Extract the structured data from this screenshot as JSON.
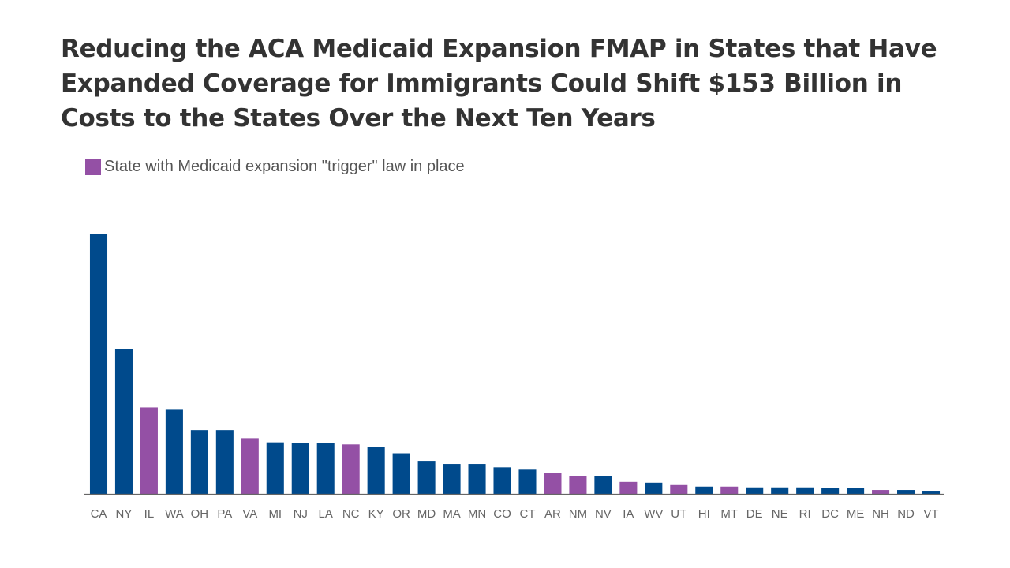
{
  "title": "Reducing the ACA Medicaid Expansion FMAP in States that Have Expanded Coverage for Immigrants Could Shift $153 Billion in Costs to the States Over the Next Ten Years",
  "legend": {
    "label": "State with Medicaid expansion \"trigger\" law in place"
  },
  "colors": {
    "default": "#004a8c",
    "trigger": "#9450a5",
    "axis": "#666666"
  },
  "chart_data": {
    "type": "bar",
    "title": "Reducing the ACA Medicaid Expansion FMAP in States that Have Expanded Coverage for Immigrants Could Shift $153 Billion in Costs to the States Over the Next Ten Years",
    "xlabel": "",
    "ylabel": "",
    "grid": false,
    "legend_position": "top-left",
    "categories": [
      "CA",
      "NY",
      "IL",
      "WA",
      "OH",
      "PA",
      "VA",
      "MI",
      "NJ",
      "LA",
      "NC",
      "KY",
      "OR",
      "MD",
      "MA",
      "MN",
      "CO",
      "CT",
      "AR",
      "NM",
      "NV",
      "IA",
      "WV",
      "UT",
      "HI",
      "MT",
      "DE",
      "NE",
      "RI",
      "DC",
      "ME",
      "NH",
      "ND",
      "VT"
    ],
    "values": [
      100,
      55.5,
      33.2,
      32.3,
      24.5,
      24.5,
      21.4,
      19.8,
      19.4,
      19.4,
      19.0,
      18.1,
      15.6,
      12.4,
      11.5,
      11.5,
      10.2,
      9.3,
      8.0,
      6.8,
      6.8,
      4.6,
      4.3,
      3.4,
      2.8,
      2.8,
      2.5,
      2.5,
      2.5,
      2.2,
      2.2,
      1.5,
      1.5,
      0.9
    ],
    "trigger_law": [
      false,
      false,
      true,
      false,
      false,
      false,
      true,
      false,
      false,
      false,
      true,
      false,
      false,
      false,
      false,
      false,
      false,
      false,
      true,
      true,
      false,
      true,
      false,
      true,
      false,
      true,
      false,
      false,
      false,
      false,
      false,
      true,
      false,
      false
    ]
  }
}
